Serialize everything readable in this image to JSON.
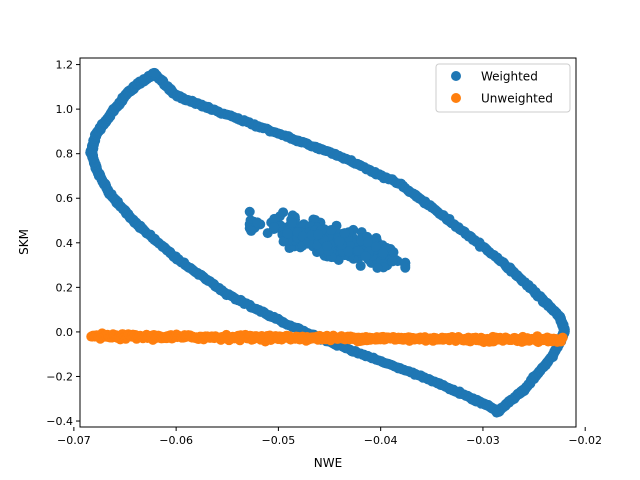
{
  "chart_data": {
    "type": "scatter",
    "title": "",
    "xlabel": "NWE",
    "ylabel": "SKM",
    "xlim": [
      -0.0694,
      -0.0209
    ],
    "ylim": [
      -0.4268,
      1.2295
    ],
    "xticks": [
      -0.07,
      -0.06,
      -0.05,
      -0.04,
      -0.03,
      -0.02
    ],
    "xtick_labels": [
      "−0.07",
      "−0.06",
      "−0.05",
      "−0.04",
      "−0.03",
      "−0.02"
    ],
    "yticks": [
      -0.4,
      -0.2,
      0.0,
      0.2,
      0.4,
      0.6,
      0.8,
      1.0,
      1.2
    ],
    "ytick_labels": [
      "−0.4",
      "−0.2",
      "0.0",
      "0.2",
      "0.4",
      "0.6",
      "0.8",
      "1.0",
      "1.2"
    ],
    "grid": false,
    "legend_position": "top-right",
    "series": [
      {
        "name": "Weighted",
        "color": "#1f77b4",
        "ring_outline": [
          [
            -0.0621,
            1.16
          ],
          [
            -0.06,
            1.06
          ],
          [
            -0.056,
            0.99
          ],
          [
            -0.05,
            0.89
          ],
          [
            -0.044,
            0.79
          ],
          [
            -0.038,
            0.66
          ],
          [
            -0.033,
            0.49
          ],
          [
            -0.028,
            0.31
          ],
          [
            -0.0245,
            0.16
          ],
          [
            -0.0225,
            0.07
          ],
          [
            -0.022,
            0.0
          ],
          [
            -0.0232,
            -0.11
          ],
          [
            -0.026,
            -0.26
          ],
          [
            -0.0285,
            -0.355
          ],
          [
            -0.031,
            -0.3
          ],
          [
            -0.036,
            -0.2
          ],
          [
            -0.043,
            -0.08
          ],
          [
            -0.049,
            0.03
          ],
          [
            -0.055,
            0.17
          ],
          [
            -0.06,
            0.33
          ],
          [
            -0.064,
            0.49
          ],
          [
            -0.0665,
            0.62
          ],
          [
            -0.0678,
            0.73
          ],
          [
            -0.0683,
            0.81
          ],
          [
            -0.0678,
            0.89
          ],
          [
            -0.0665,
            0.97
          ],
          [
            -0.0648,
            1.07
          ],
          [
            -0.0635,
            1.12
          ]
        ],
        "cluster": {
          "center": [
            -0.0452,
            0.41
          ],
          "spread_x": 0.0065,
          "spread_y": 0.14
        }
      },
      {
        "name": "Unweighted",
        "color": "#ff7f0e",
        "line": {
          "x_start": -0.0683,
          "x_end": -0.0222,
          "y_start": -0.02,
          "y_end": -0.035,
          "jitter": 0.015
        }
      }
    ]
  }
}
